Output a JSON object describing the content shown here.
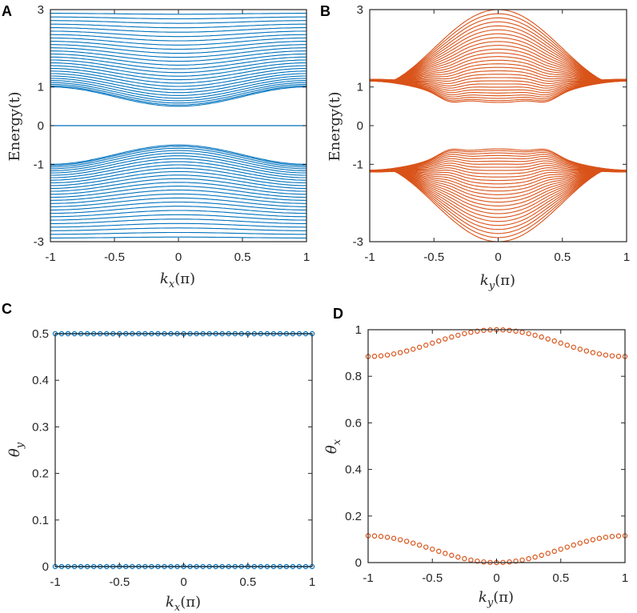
{
  "colors": {
    "blue": "#0072BD",
    "orange": "#D95319",
    "axis": "#262626"
  },
  "chart_data": [
    {
      "id": "A",
      "panel_label": "A",
      "type": "line",
      "title": "",
      "xlabel": {
        "main": "k",
        "sub": "x",
        "rest": "(π)"
      },
      "ylabel": "Energy(t)",
      "xlim": [
        -1,
        1
      ],
      "ylim": [
        -3,
        3
      ],
      "xticks": [
        -1,
        -0.5,
        0,
        0.5,
        1
      ],
      "xtick_labels": [
        "-1",
        "-0.5",
        "0",
        "0.5",
        "1"
      ],
      "yticks": [
        -3,
        -1,
        0,
        1,
        3
      ],
      "ytick_labels": [
        "-3",
        "-1",
        "0",
        "1",
        "3"
      ],
      "color": "#0072BD",
      "band_model": {
        "bands_per_side": 28,
        "gap_at_center": 0.5,
        "gap_at_edge": 1.0,
        "max_energy": 3.0,
        "zero_mode": true
      },
      "series_description": "Symmetric energy bands; a flat zero-energy band at E=0; gap minimum ±0.5 at kx=0"
    },
    {
      "id": "B",
      "panel_label": "B",
      "type": "line",
      "title": "",
      "xlabel": {
        "main": "k",
        "sub": "y",
        "rest": "(π)"
      },
      "ylabel": "Energy(t)",
      "xlim": [
        -1,
        1
      ],
      "ylim": [
        -3,
        3
      ],
      "xticks": [
        -1,
        -0.5,
        0,
        0.5,
        1
      ],
      "xtick_labels": [
        "-1",
        "-0.5",
        "0",
        "0.5",
        "1"
      ],
      "yticks": [
        -3,
        -1,
        0,
        1,
        3
      ],
      "ytick_labels": [
        "-3",
        "-1",
        "0",
        "1",
        "3"
      ],
      "color": "#D95319",
      "band_model": {
        "bands_per_side": 28,
        "gap_min": 0.45,
        "gap_at_center": 0.6,
        "dip_position": 0.38,
        "max_energy": 3.0,
        "zero_mode": false
      },
      "series_description": "Gapped energy bands; gap minima ±0.45 near ky=±0.38, local maximum gap ±0.6 at ky=0"
    },
    {
      "id": "C",
      "panel_label": "C",
      "type": "scatter",
      "title": "",
      "xlabel": {
        "main": "k",
        "sub": "x",
        "rest": "(π)"
      },
      "ylabel": {
        "main": "θ",
        "sub": "y"
      },
      "xlim": [
        -1,
        1
      ],
      "ylim": [
        0,
        0.5
      ],
      "xticks": [
        -1,
        -0.5,
        0,
        0.5,
        1
      ],
      "xtick_labels": [
        "-1",
        "-0.5",
        "0",
        "0.5",
        "1"
      ],
      "yticks": [
        0,
        0.1,
        0.2,
        0.3,
        0.4,
        0.5
      ],
      "ytick_labels": [
        "0",
        "0.1",
        "0.2",
        "0.3",
        "0.4",
        "0.5"
      ],
      "color": "#0072BD",
      "marker_count": 41,
      "series": [
        {
          "name": "upper",
          "formula": "constant",
          "value": 0.5
        },
        {
          "name": "lower",
          "formula": "constant",
          "value": 0.0
        }
      ]
    },
    {
      "id": "D",
      "panel_label": "D",
      "type": "scatter",
      "title": "",
      "xlabel": {
        "main": "k",
        "sub": "y",
        "rest": "(π)"
      },
      "ylabel": {
        "main": "θ",
        "sub": "x"
      },
      "xlim": [
        -1,
        1
      ],
      "ylim": [
        0,
        1
      ],
      "xticks": [
        -1,
        -0.5,
        0,
        0.5,
        1
      ],
      "xtick_labels": [
        "-1",
        "-0.5",
        "0",
        "0.5",
        "1"
      ],
      "yticks": [
        0,
        0.2,
        0.4,
        0.6,
        0.8,
        1
      ],
      "ytick_labels": [
        "0",
        "0.2",
        "0.4",
        "0.6",
        "0.8",
        "1"
      ],
      "color": "#D95319",
      "marker_count": 41,
      "series": [
        {
          "name": "upper",
          "at_center": 1.0,
          "at_edge": 0.885
        },
        {
          "name": "lower",
          "at_center": 0.0,
          "at_edge": 0.115
        }
      ]
    }
  ]
}
